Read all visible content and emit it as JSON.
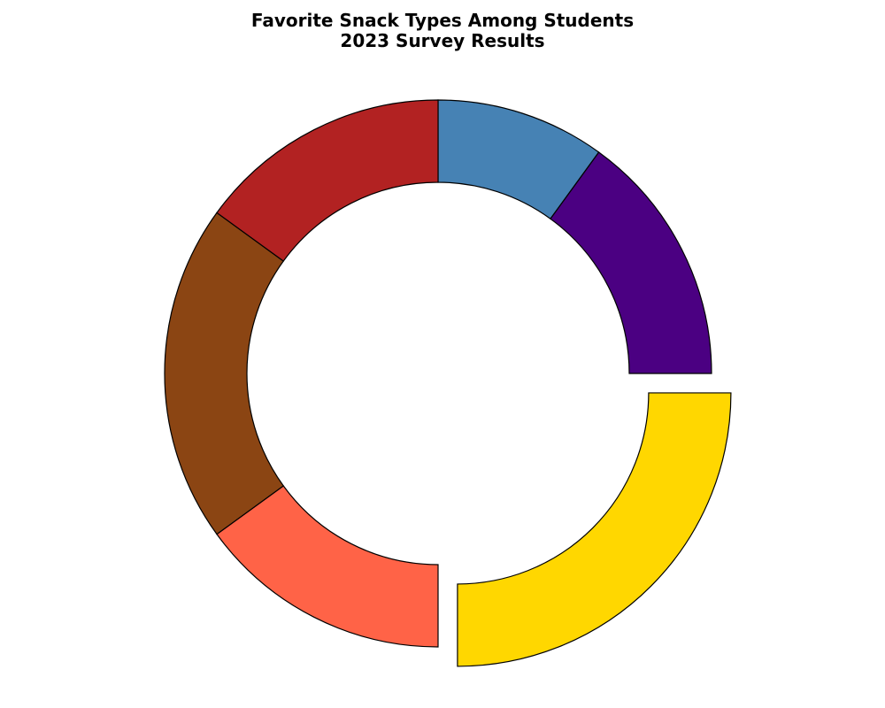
{
  "chart_data": {
    "type": "donut",
    "title": "Favorite Snack Types Among Students",
    "subtitle": "2023 Survey Results",
    "start_angle_deg": 90,
    "direction": "clockwise",
    "slices": [
      {
        "value": 10,
        "color": "#4682B4"
      },
      {
        "value": 15,
        "color": "#4B0082"
      },
      {
        "value": 25,
        "color": "#FFD700",
        "exploded": true
      },
      {
        "value": 15,
        "color": "#FF6347"
      },
      {
        "value": 20,
        "color": "#8B4513"
      },
      {
        "value": 15,
        "color": "#B22222"
      }
    ],
    "legend": "none",
    "edge_color": "#000000"
  }
}
